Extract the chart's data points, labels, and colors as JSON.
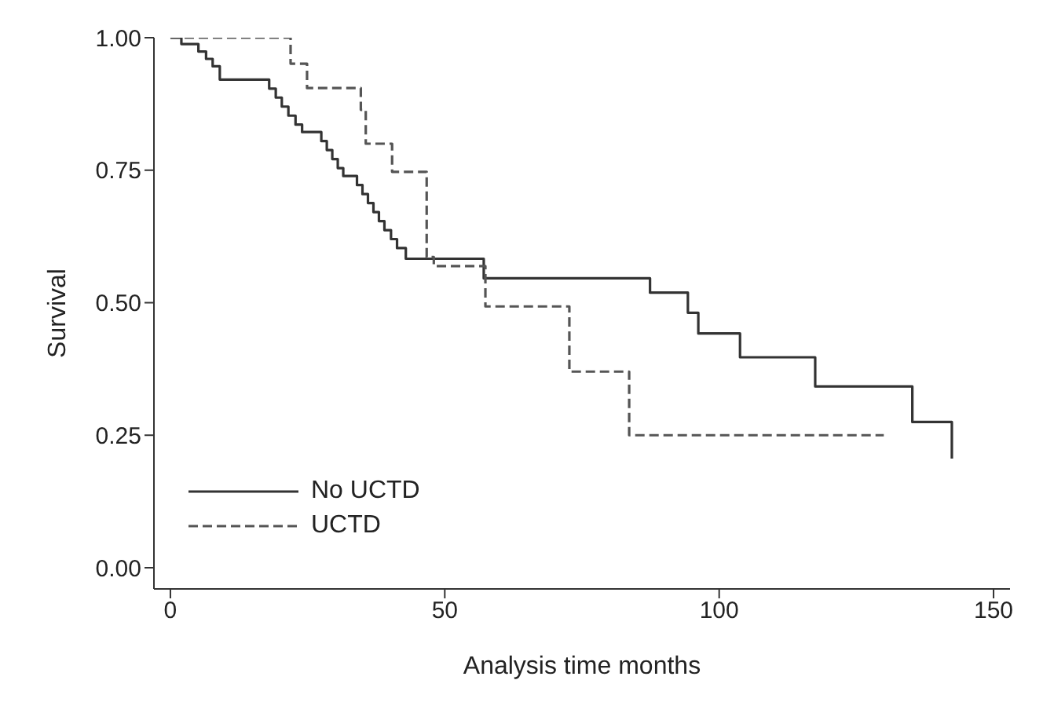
{
  "chart_data": {
    "type": "step",
    "xlabel": "Analysis time months",
    "ylabel": "Survival",
    "xlim": [
      -3,
      153
    ],
    "xticks": [
      0,
      50,
      100,
      150
    ],
    "ylim": [
      -0.04,
      1.0
    ],
    "yticks": [
      {
        "value": 0,
        "label": "0.00"
      },
      {
        "value": 0.25,
        "label": "0.25"
      },
      {
        "value": 0.5,
        "label": "0.50"
      },
      {
        "value": 0.75,
        "label": "0.75"
      },
      {
        "value": 1,
        "label": "1.00"
      }
    ],
    "legend": "bottom left",
    "marker": "none",
    "series": [
      {
        "name": "No UCTD",
        "color": "#333333",
        "line_style": "solid",
        "x": [
          0,
          2,
          5.1,
          6.5,
          7.7,
          9,
          18,
          19.2,
          20.3,
          21.5,
          22.8,
          24,
          27.5,
          28.5,
          29.5,
          30.5,
          31.5,
          34,
          35,
          36,
          37,
          38,
          39,
          40.2,
          41.3,
          42.9,
          57.1,
          87.4,
          94.3,
          96.2,
          103.8,
          117.5,
          135.2,
          142.4
        ],
        "values": [
          1,
          0.988,
          0.974,
          0.96,
          0.946,
          0.921,
          0.904,
          0.887,
          0.87,
          0.853,
          0.836,
          0.822,
          0.805,
          0.788,
          0.771,
          0.754,
          0.739,
          0.722,
          0.705,
          0.688,
          0.671,
          0.654,
          0.637,
          0.62,
          0.603,
          0.583,
          0.546,
          0.519,
          0.481,
          0.442,
          0.397,
          0.342,
          0.275,
          0.206
        ]
      },
      {
        "name": "UCTD",
        "color": "#555555",
        "line_style": "dashed",
        "x": [
          0,
          21.9,
          24.9,
          34.7,
          35.6,
          40.4,
          46.7,
          48,
          57.4,
          72.7,
          83.6,
          130
        ],
        "values": [
          1,
          0.951,
          0.905,
          0.864,
          0.8,
          0.747,
          0.586,
          0.569,
          0.493,
          0.37,
          0.25,
          0.25
        ]
      }
    ]
  }
}
